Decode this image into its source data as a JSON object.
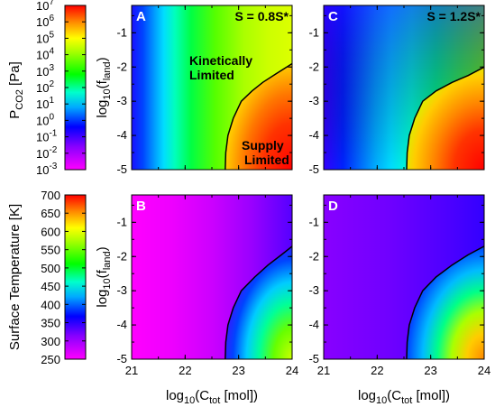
{
  "figure": {
    "xlabel_base": "log",
    "xlabel_sub": "10",
    "xlabel_mid": "(C",
    "xlabel_sub2": "tot",
    "xlabel_end": " [mol])",
    "ylabel_base": "log",
    "ylabel_sub": "10",
    "ylabel_mid": "(f",
    "ylabel_sub2": "land",
    "ylabel_end": ")"
  },
  "colorbars": [
    {
      "label_main": "P",
      "label_sub": "CO2",
      "label_end": " [Pa]",
      "tick_bases": [
        "10",
        "10",
        "10",
        "10",
        "10",
        "10",
        "10",
        "10",
        "10",
        "10",
        "10"
      ],
      "tick_exps": [
        "7",
        "6",
        "5",
        "4",
        "3",
        "2",
        "1",
        "0",
        "-1",
        "-2",
        "-3"
      ],
      "colormap": "rainbow",
      "scale": "log",
      "range": [
        -3,
        7
      ]
    },
    {
      "label": "Surface Temperature [K]",
      "ticks": [
        "700",
        "650",
        "600",
        "550",
        "500",
        "450",
        "400",
        "350",
        "300",
        "250"
      ],
      "colormap": "rainbow",
      "range": [
        250,
        700
      ]
    }
  ],
  "chart_data": [
    {
      "panel": "A",
      "type": "heatmap",
      "title": "S = 0.8S*",
      "x_ticks": [
        "21",
        "22",
        "23",
        "24"
      ],
      "y_ticks": [
        "-1",
        "-2",
        "-3",
        "-4",
        "-5"
      ],
      "xlim": [
        21,
        24
      ],
      "ylim": [
        -5,
        -0.2
      ],
      "variable": "PCO2 [Pa] (log10)",
      "annotations": [
        "Kinetically",
        "Limited",
        "Supply",
        "Limited"
      ],
      "boundary": {
        "x": [
          22.75,
          22.76,
          22.8,
          22.9,
          23.05,
          23.25,
          23.45,
          23.7,
          24.0
        ],
        "y": [
          -5,
          -4.5,
          -4.0,
          -3.5,
          -3.0,
          -2.7,
          -2.45,
          -2.2,
          -1.9
        ]
      },
      "surface_samples": {
        "x": [
          21,
          21.5,
          22,
          22.5,
          23,
          23.5,
          24
        ],
        "y_at_fland_minus1": [
          -1.0,
          0.0,
          1.0,
          1.8,
          2.5,
          3.0,
          3.3
        ]
      }
    },
    {
      "panel": "C",
      "type": "heatmap",
      "title": "S = 1.2S*",
      "x_ticks": [
        "21",
        "22",
        "23",
        "24"
      ],
      "y_ticks": [
        "-1",
        "-2",
        "-3",
        "-4",
        "-5"
      ],
      "xlim": [
        21,
        24
      ],
      "ylim": [
        -5,
        -0.2
      ],
      "variable": "PCO2 [Pa] (log10)",
      "boundary": {
        "x": [
          22.55,
          22.56,
          22.6,
          22.7,
          22.85,
          23.1,
          23.4,
          23.7,
          24.0
        ],
        "y": [
          -5,
          -4.5,
          -4.0,
          -3.5,
          -3.0,
          -2.7,
          -2.45,
          -2.25,
          -2.0
        ]
      }
    },
    {
      "panel": "B",
      "type": "heatmap",
      "x_ticks": [
        "21",
        "22",
        "23",
        "24"
      ],
      "y_ticks": [
        "-1",
        "-2",
        "-3",
        "-4",
        "-5"
      ],
      "xlim": [
        21,
        24
      ],
      "ylim": [
        -5,
        -0.2
      ],
      "variable": "Surface Temperature [K]",
      "boundary": {
        "x": [
          22.75,
          22.76,
          22.8,
          22.9,
          23.05,
          23.3,
          23.55,
          23.8,
          24.0
        ],
        "y": [
          -5,
          -4.5,
          -4.0,
          -3.5,
          -3.0,
          -2.6,
          -2.25,
          -1.95,
          -1.7
        ]
      }
    },
    {
      "panel": "D",
      "type": "heatmap",
      "x_ticks": [
        "21",
        "22",
        "23",
        "24"
      ],
      "y_ticks": [
        "-1",
        "-2",
        "-3",
        "-4",
        "-5"
      ],
      "xlim": [
        21,
        24
      ],
      "ylim": [
        -5,
        -0.2
      ],
      "variable": "Surface Temperature [K]",
      "boundary": {
        "x": [
          22.55,
          22.56,
          22.6,
          22.7,
          22.85,
          23.1,
          23.4,
          23.7,
          24.0
        ],
        "y": [
          -5,
          -4.5,
          -4.0,
          -3.5,
          -3.0,
          -2.6,
          -2.25,
          -1.95,
          -1.7
        ]
      }
    }
  ]
}
